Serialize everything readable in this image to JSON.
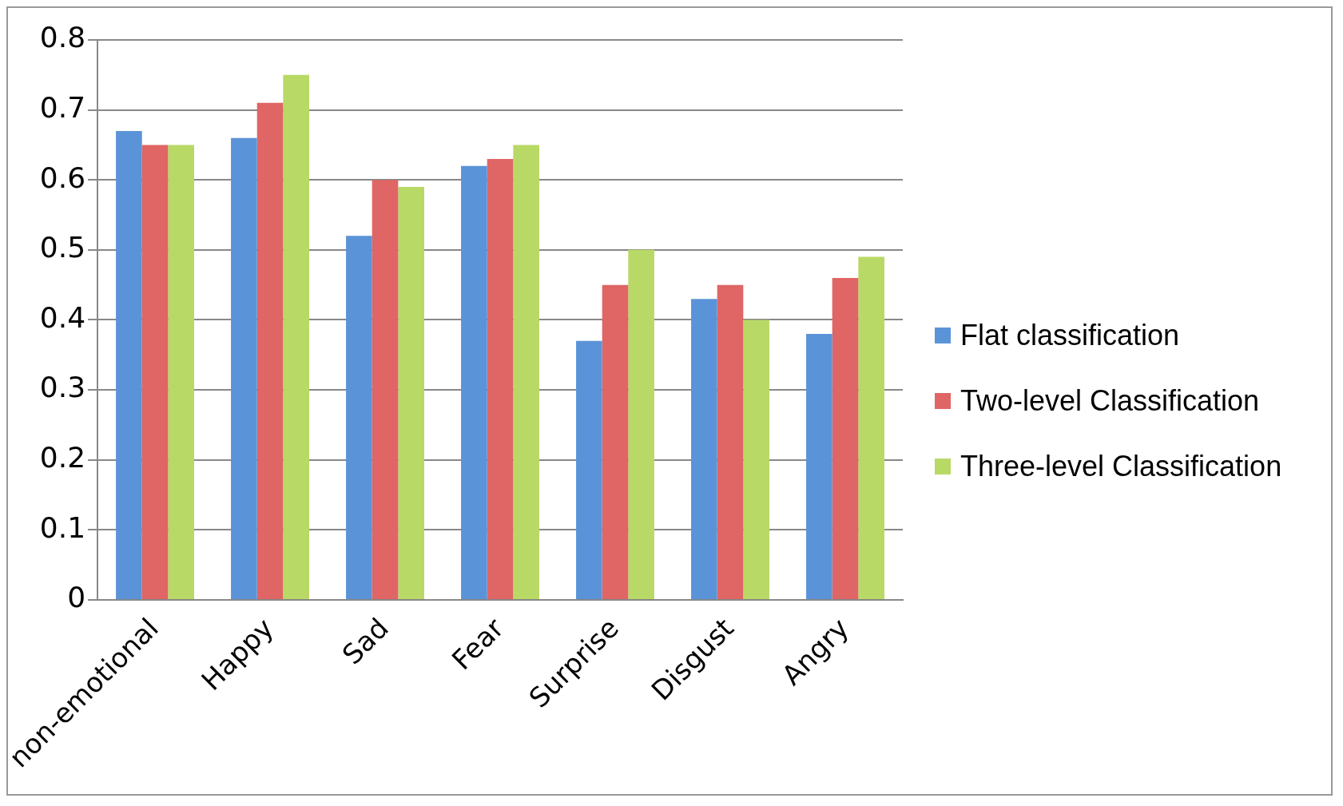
{
  "chart_data": {
    "type": "bar",
    "categories": [
      "non-emotional",
      "Happy",
      "Sad",
      "Fear",
      "Surprise",
      "Disgust",
      "Angry"
    ],
    "series": [
      {
        "name": "Flat classification",
        "color": "#5b93d8",
        "values": [
          0.67,
          0.66,
          0.52,
          0.62,
          0.37,
          0.43,
          0.38
        ]
      },
      {
        "name": "Two-level Classification",
        "color": "#e06565",
        "values": [
          0.65,
          0.71,
          0.6,
          0.63,
          0.45,
          0.45,
          0.46
        ]
      },
      {
        "name": "Three-level Classification",
        "color": "#b8d966",
        "values": [
          0.65,
          0.75,
          0.59,
          0.65,
          0.5,
          0.4,
          0.49
        ]
      }
    ],
    "ylim": [
      0,
      0.8
    ],
    "yticks": [
      0,
      0.1,
      0.2,
      0.3,
      0.4,
      0.5,
      0.6,
      0.7,
      0.8
    ],
    "grid": "y",
    "legend": "right"
  }
}
